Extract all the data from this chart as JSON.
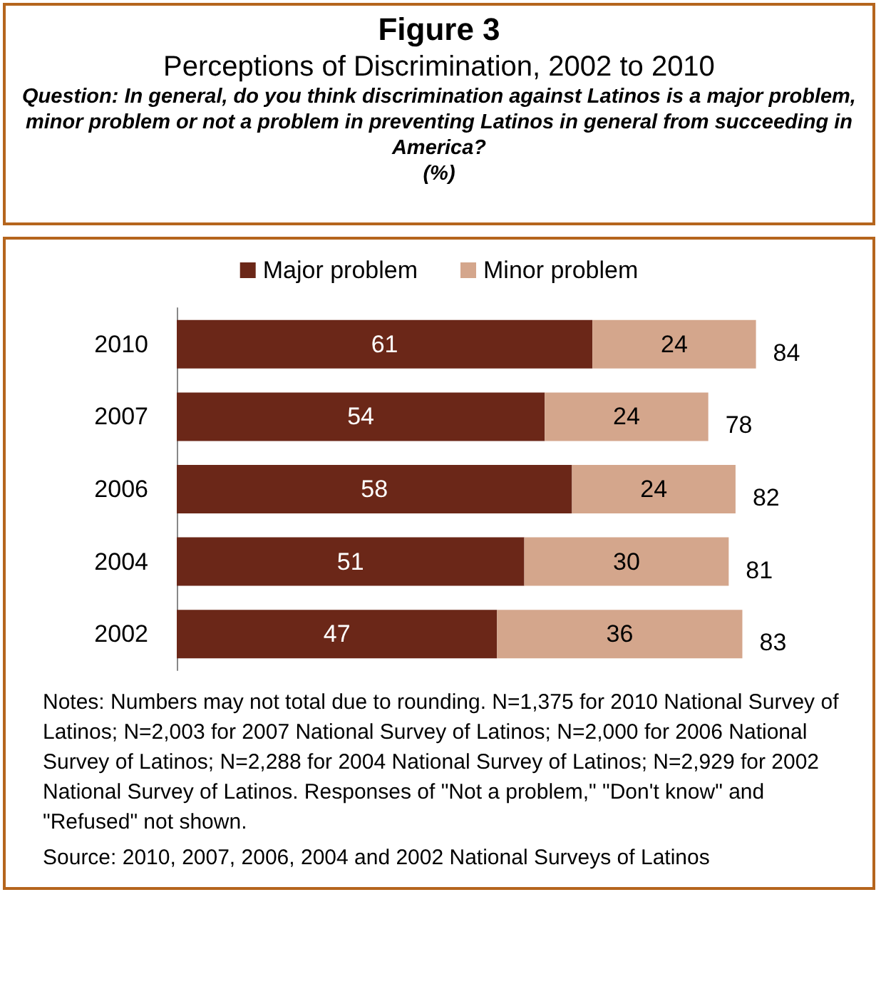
{
  "chart_data": {
    "type": "bar",
    "orientation": "horizontal",
    "stacked": true,
    "title": "Figure 3",
    "subtitle": "Perceptions of Discrimination, 2002 to 2010",
    "annotations": [
      "Question:  In general, do you think discrimination against Latinos is a major problem, minor problem or not a problem in preventing Latinos in general from succeeding in America?",
      "(%)",
      "Notes: Numbers may not total due to rounding. N=1,375 for 2010 National Survey of Latinos; N=2,003 for 2007 National Survey of Latinos; N=2,000 for 2006 National Survey of Latinos; N=2,288 for 2004 National Survey of Latinos; N=2,929 for 2002 National Survey of Latinos. Responses of \"Not a problem,\" \"Don't know\" and \"Refused\" not shown.",
      "Source:  2010, 2007, 2006, 2004 and 2002 National Surveys of Latinos"
    ],
    "categories": [
      "2010",
      "2007",
      "2006",
      "2004",
      "2002"
    ],
    "series": [
      {
        "name": "Major problem",
        "color": "#6b2718",
        "values": [
          61,
          54,
          58,
          51,
          47
        ]
      },
      {
        "name": "Minor problem",
        "color": "#d4a68c",
        "values": [
          24,
          24,
          24,
          30,
          36
        ]
      }
    ],
    "totals": [
      "84",
      "78",
      "82",
      "81",
      "83"
    ],
    "data_labels": true,
    "legend": "top"
  }
}
